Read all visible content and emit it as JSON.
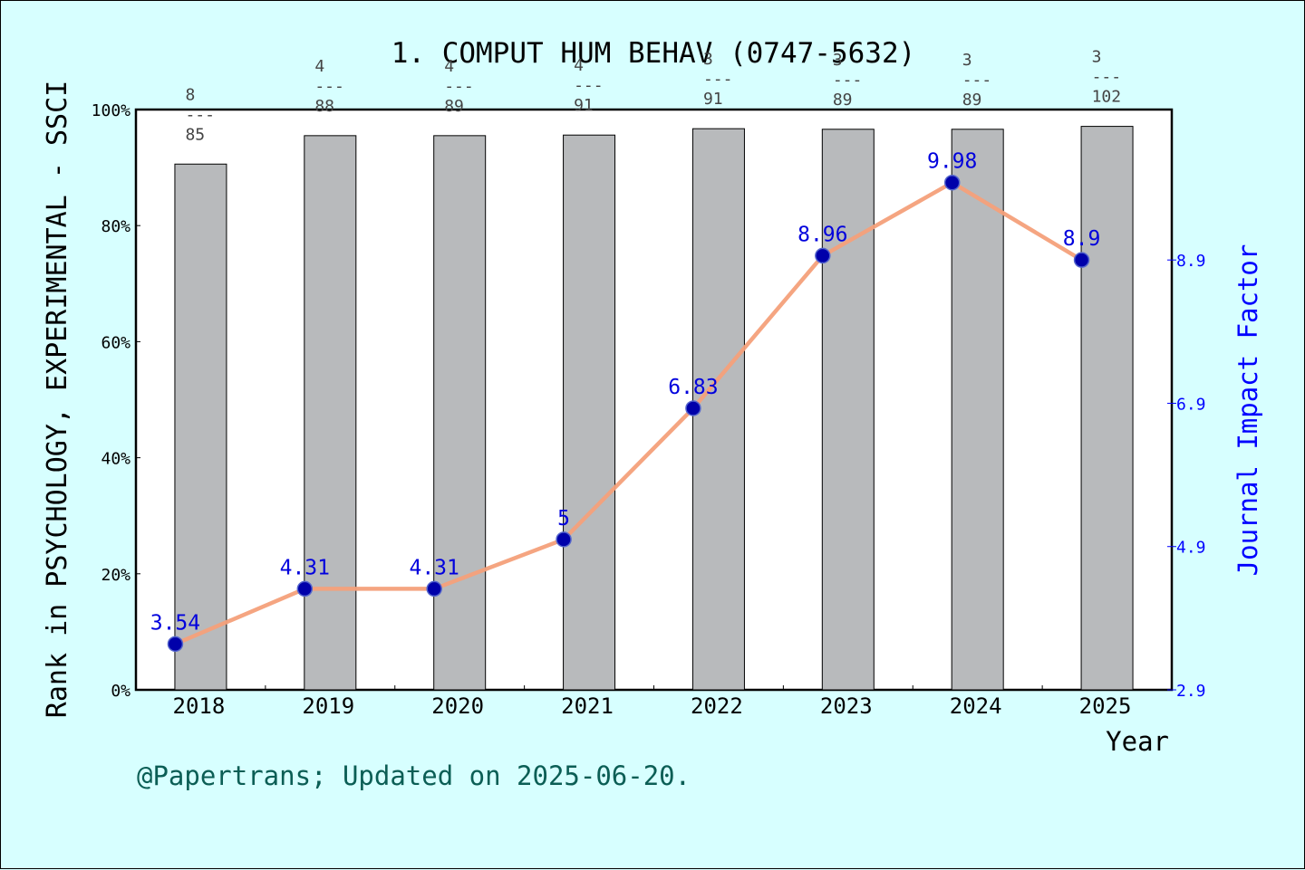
{
  "chart_data": {
    "type": "bar",
    "title": "1. COMPUT HUM BEHAV (0747-5632)",
    "xlabel": "Year",
    "ylabel_left": "Rank in PSYCHOLOGY, EXPERIMENTAL - SSCI",
    "ylabel_right": "Journal Impact Factor",
    "categories": [
      "2018",
      "2019",
      "2020",
      "2021",
      "2022",
      "2023",
      "2024",
      "2025"
    ],
    "left_axis": {
      "ylim": [
        0,
        100
      ],
      "ticks": [
        "0%",
        "20%",
        "40%",
        "60%",
        "80%",
        "100%"
      ]
    },
    "right_axis": {
      "ylim": [
        2.9,
        11.0
      ],
      "ticks": [
        "2.9",
        "4.9",
        "6.9",
        "8.9"
      ]
    },
    "series": [
      {
        "kind": "bar",
        "values": [
          90.6,
          95.5,
          95.5,
          95.6,
          96.7,
          96.6,
          96.6,
          97.1
        ],
        "rank": [
          "8",
          "4",
          "4",
          "4",
          "3",
          "3",
          "3",
          "3"
        ],
        "total": [
          "85",
          "88",
          "89",
          "91",
          "91",
          "89",
          "89",
          "102"
        ],
        "color": "#b8babc"
      },
      {
        "kind": "line",
        "values": [
          3.54,
          4.31,
          4.31,
          5,
          6.83,
          8.96,
          9.98,
          8.9
        ],
        "labels": [
          "3.54",
          "4.31",
          "4.31",
          "5",
          "6.83",
          "8.96",
          "9.98",
          "8.9"
        ],
        "color": "#f4a07a",
        "marker_color": "#0000aa"
      }
    ],
    "grid": false
  },
  "footer": "@Papertrans; Updated on 2025-06-20.",
  "colors": {
    "background": "#d7ffff",
    "plot_background": "#ffffff",
    "right_axis": "#0000ff",
    "footer": "#0b5e55"
  }
}
